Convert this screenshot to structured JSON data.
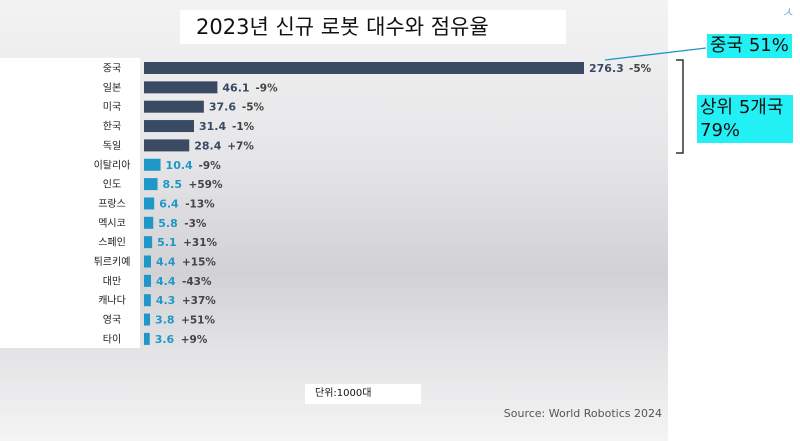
{
  "chart_data": {
    "type": "bar",
    "orientation": "horizontal",
    "title": "2023년 신규 로봇 대수와 점유율",
    "categories": [
      "중국",
      "일본",
      "미국",
      "한국",
      "독일",
      "이탈리아",
      "인도",
      "프랑스",
      "멕시코",
      "스페인",
      "튀르키예",
      "대만",
      "캐나다",
      "영국",
      "타이"
    ],
    "values": [
      276.3,
      46.1,
      37.6,
      31.4,
      28.4,
      10.4,
      8.5,
      6.4,
      5.8,
      5.1,
      4.4,
      4.4,
      4.3,
      3.8,
      3.6
    ],
    "changes": [
      "-5%",
      "-9%",
      "-5%",
      "-1%",
      "+7%",
      "-9%",
      "+59%",
      "-13%",
      "-3%",
      "+31%",
      "+15%",
      "-43%",
      "+37%",
      "+51%",
      "+9%"
    ],
    "xlim": [
      0,
      276.3
    ],
    "unit_label": "단위:1000대",
    "source": "Source: World Robotics 2024",
    "grid": false,
    "colors": {
      "top5": "#3b4a63",
      "others": "#1f97c8",
      "highlight": "#22f0f4"
    }
  },
  "annotations": {
    "china_share": "중국 51%",
    "top5_line1": "상위 5개국",
    "top5_line2": "79%"
  }
}
